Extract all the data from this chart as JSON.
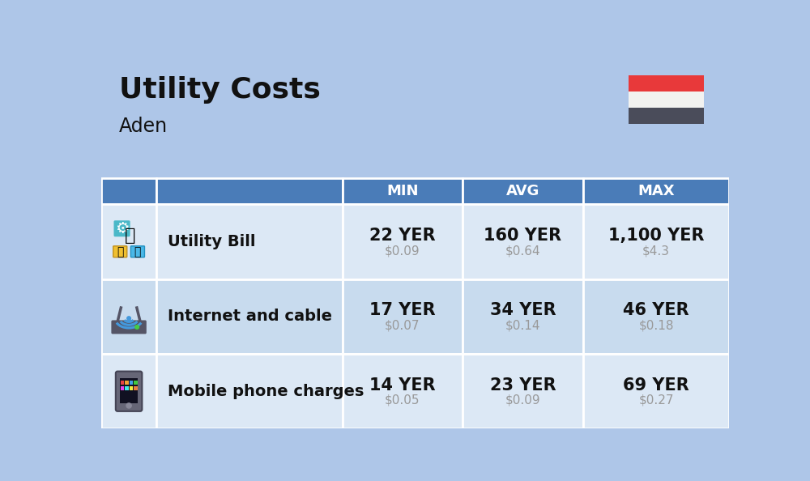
{
  "title": "Utility Costs",
  "subtitle": "Aden",
  "background_color": "#aec6e8",
  "header_bg_color": "#4a7cb8",
  "header_text_color": "#ffffff",
  "row_bg_colors": [
    "#dce8f5",
    "#c8dbee"
  ],
  "col_headers": [
    "MIN",
    "AVG",
    "MAX"
  ],
  "rows": [
    {
      "label": "Utility Bill",
      "min_yer": "22 YER",
      "min_usd": "$0.09",
      "avg_yer": "160 YER",
      "avg_usd": "$0.64",
      "max_yer": "1,100 YER",
      "max_usd": "$4.3"
    },
    {
      "label": "Internet and cable",
      "min_yer": "17 YER",
      "min_usd": "$0.07",
      "avg_yer": "34 YER",
      "avg_usd": "$0.14",
      "max_yer": "46 YER",
      "max_usd": "$0.18"
    },
    {
      "label": "Mobile phone charges",
      "min_yer": "14 YER",
      "min_usd": "$0.05",
      "avg_yer": "23 YER",
      "avg_usd": "$0.09",
      "max_yer": "69 YER",
      "max_usd": "$0.27"
    }
  ],
  "flag_red": "#e8393a",
  "flag_white": "#f2f2f0",
  "flag_black": "#4a4c5a",
  "title_fontsize": 26,
  "subtitle_fontsize": 17,
  "header_fontsize": 13,
  "cell_yer_fontsize": 15,
  "cell_usd_fontsize": 11,
  "label_fontsize": 14,
  "border_color": "#ffffff",
  "usd_color": "#999999",
  "text_color": "#111111"
}
